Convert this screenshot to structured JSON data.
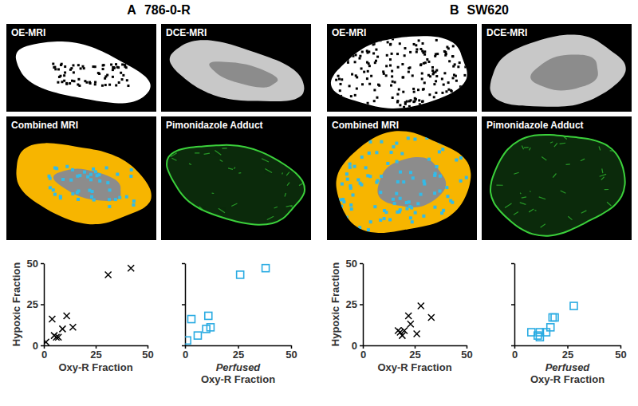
{
  "panels": [
    {
      "label": "A",
      "title": "786-0-R",
      "images": [
        "OE-MRI",
        "DCE-MRI",
        "Combined MRI",
        "Pimonidazole Adduct"
      ]
    },
    {
      "label": "B",
      "title": "SW620",
      "images": [
        "OE-MRI",
        "DCE-MRI",
        "Combined MRI",
        "Pimonidazole Adduct"
      ]
    }
  ],
  "chart_data": [
    {
      "type": "scatter",
      "x_label": "Oxy-R Fraction",
      "y_label": "Hypoxic Fraction",
      "x": [
        1,
        4,
        5,
        6,
        7,
        9,
        11,
        14,
        31,
        42
      ],
      "values": [
        2,
        16,
        6,
        5,
        5,
        10,
        18,
        11,
        43,
        47
      ],
      "color": "#000000",
      "marker": "x",
      "xlim": [
        0,
        50
      ],
      "ylim": [
        0,
        50
      ],
      "xticks": [
        0,
        25,
        50
      ],
      "yticks": [
        0,
        25,
        50
      ]
    },
    {
      "type": "scatter",
      "x_label": [
        "Perfused",
        "Oxy-R Fraction"
      ],
      "x": [
        1,
        3,
        6,
        10,
        11,
        12,
        26,
        38
      ],
      "values": [
        3,
        16,
        6,
        10,
        18,
        11,
        43,
        47
      ],
      "color": "#29abe2",
      "marker": "square",
      "tick_labels": "x",
      "xlim": [
        0,
        50
      ],
      "ylim": [
        0,
        50
      ],
      "xticks": [
        0,
        25,
        50
      ],
      "yticks": [
        0,
        25,
        50
      ]
    },
    {
      "type": "scatter",
      "x_label": "Oxy-R Fraction",
      "y_label": "Hypoxic Fraction",
      "x": [
        17,
        18,
        19,
        20,
        22,
        23,
        26,
        28,
        33
      ],
      "values": [
        9,
        8,
        6,
        9,
        18,
        13,
        7,
        24,
        17
      ],
      "color": "#000000",
      "marker": "x",
      "xlim": [
        0,
        50
      ],
      "ylim": [
        0,
        50
      ],
      "xticks": [
        0,
        25,
        50
      ],
      "yticks": [
        0,
        25,
        50
      ]
    },
    {
      "type": "scatter",
      "x_label": [
        "Perfused",
        "Oxy-R Fraction"
      ],
      "x": [
        8,
        11,
        12,
        12,
        15,
        17,
        18,
        19,
        28
      ],
      "values": [
        8,
        6,
        5,
        8,
        8,
        11,
        17,
        17,
        24
      ],
      "color": "#29abe2",
      "marker": "square",
      "tick_labels": "x",
      "xlim": [
        0,
        50
      ],
      "ylim": [
        0,
        50
      ],
      "xticks": [
        0,
        25,
        50
      ],
      "yticks": [
        0,
        25,
        50
      ]
    }
  ]
}
